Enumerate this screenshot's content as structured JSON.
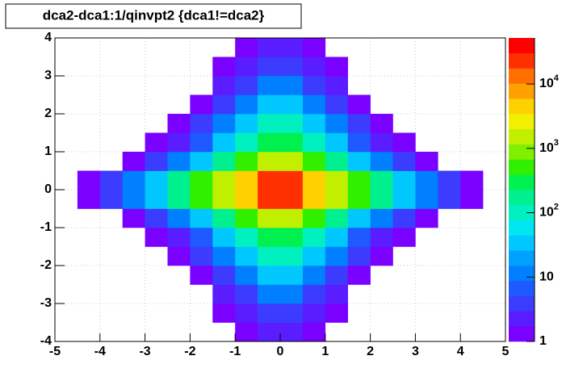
{
  "chart_data": {
    "type": "heatmap",
    "title": "dca2-dca1:1/qinvpt2 {dca1!=dca2}",
    "x_bins": [
      -5,
      -4.5,
      -4,
      -3.5,
      -3,
      -2.5,
      -2,
      -1.5,
      -1,
      -0.5,
      0,
      0.5,
      1,
      1.5,
      2,
      2.5,
      3,
      3.5,
      4,
      4.5,
      5
    ],
    "y_bins": [
      -4,
      -3.5,
      -3,
      -2.5,
      -2,
      -1.5,
      -1,
      -0.5,
      0,
      0.5,
      1,
      1.5,
      2,
      2.5,
      3,
      3.5,
      4
    ],
    "z": [
      [
        0,
        0,
        0,
        0,
        0,
        0,
        0,
        0,
        1,
        2,
        2,
        1,
        0,
        0,
        0,
        0,
        0,
        0,
        0,
        0
      ],
      [
        0,
        0,
        0,
        0,
        0,
        0,
        0,
        1,
        2,
        5,
        5,
        2,
        1,
        0,
        0,
        0,
        0,
        0,
        0,
        0
      ],
      [
        0,
        0,
        0,
        0,
        0,
        0,
        0,
        2,
        5,
        12,
        12,
        5,
        2,
        0,
        0,
        0,
        0,
        0,
        0,
        0
      ],
      [
        0,
        0,
        0,
        0,
        0,
        0,
        1,
        4,
        12,
        30,
        30,
        12,
        4,
        1,
        0,
        0,
        0,
        0,
        0,
        0
      ],
      [
        0,
        0,
        0,
        0,
        0,
        1,
        3,
        10,
        30,
        80,
        80,
        30,
        10,
        3,
        1,
        0,
        0,
        0,
        0,
        0
      ],
      [
        0,
        0,
        0,
        0,
        1,
        2,
        8,
        30,
        100,
        300,
        300,
        100,
        30,
        8,
        2,
        1,
        0,
        0,
        0,
        0
      ],
      [
        0,
        0,
        0,
        1,
        3,
        10,
        40,
        150,
        500,
        1500,
        1500,
        500,
        150,
        40,
        10,
        3,
        1,
        0,
        0,
        0
      ],
      [
        0,
        1,
        3,
        10,
        40,
        150,
        500,
        1500,
        5000,
        20000,
        20000,
        5000,
        1500,
        500,
        150,
        40,
        10,
        3,
        1,
        0
      ],
      [
        0,
        1,
        3,
        10,
        40,
        150,
        500,
        1500,
        5000,
        20000,
        20000,
        5000,
        1500,
        500,
        150,
        40,
        10,
        3,
        1,
        0
      ],
      [
        0,
        0,
        0,
        1,
        3,
        10,
        40,
        150,
        500,
        1500,
        1500,
        500,
        150,
        40,
        10,
        3,
        1,
        0,
        0,
        0
      ],
      [
        0,
        0,
        0,
        0,
        1,
        2,
        8,
        30,
        100,
        300,
        300,
        100,
        30,
        8,
        2,
        1,
        0,
        0,
        0,
        0
      ],
      [
        0,
        0,
        0,
        0,
        0,
        1,
        3,
        10,
        30,
        80,
        80,
        30,
        10,
        3,
        1,
        0,
        0,
        0,
        0,
        0
      ],
      [
        0,
        0,
        0,
        0,
        0,
        0,
        1,
        4,
        12,
        30,
        30,
        12,
        4,
        1,
        0,
        0,
        0,
        0,
        0,
        0
      ],
      [
        0,
        0,
        0,
        0,
        0,
        0,
        0,
        2,
        5,
        12,
        12,
        5,
        2,
        0,
        0,
        0,
        0,
        0,
        0,
        0
      ],
      [
        0,
        0,
        0,
        0,
        0,
        0,
        0,
        1,
        2,
        5,
        5,
        2,
        1,
        0,
        0,
        0,
        0,
        0,
        0,
        0
      ],
      [
        0,
        0,
        0,
        0,
        0,
        0,
        0,
        0,
        1,
        2,
        2,
        1,
        0,
        0,
        0,
        0,
        0,
        0,
        0,
        0
      ]
    ],
    "xlim": [
      -5,
      5
    ],
    "ylim": [
      -4,
      4
    ],
    "xticks": [
      -5,
      -4,
      -3,
      -2,
      -1,
      0,
      1,
      2,
      3,
      4,
      5
    ],
    "yticks": [
      -4,
      -3,
      -2,
      -1,
      0,
      1,
      2,
      3,
      4
    ],
    "zlim": [
      1,
      52000
    ],
    "zscale": "log",
    "zticks": [
      1,
      10,
      {
        "value": 100,
        "label": "10",
        "exponent": "2"
      },
      {
        "value": 1000,
        "label": "10",
        "exponent": "3"
      },
      {
        "value": 10000,
        "label": "10",
        "exponent": "4"
      }
    ],
    "grid": true,
    "palette": [
      "#7a00ff",
      "#5a1dff",
      "#3c3cff",
      "#1e5aff",
      "#0080ff",
      "#00a0ff",
      "#00c8ff",
      "#00e6f0",
      "#00f0c0",
      "#00f090",
      "#00f050",
      "#30f000",
      "#80f000",
      "#c0f000",
      "#f0f000",
      "#ffd000",
      "#ffa000",
      "#ff7000",
      "#ff3000",
      "#ff0000"
    ]
  }
}
